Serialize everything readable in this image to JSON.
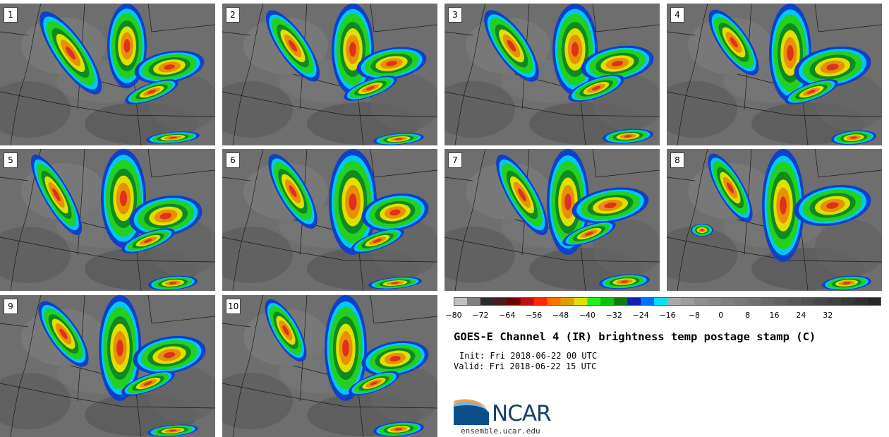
{
  "panels": [
    {
      "label": "1",
      "cells": [
        {
          "cx": 100,
          "cy": 70,
          "rx": 22,
          "ry": 70,
          "rot": -35
        },
        {
          "cx": 180,
          "cy": 60,
          "rx": 28,
          "ry": 60,
          "rot": 0
        },
        {
          "cx": 240,
          "cy": 90,
          "rx": 50,
          "ry": 22,
          "rot": -10
        },
        {
          "cx": 215,
          "cy": 125,
          "rx": 40,
          "ry": 12,
          "rot": -20
        },
        {
          "cx": 245,
          "cy": 190,
          "rx": 38,
          "ry": 8,
          "rot": -5
        }
      ]
    },
    {
      "label": "2",
      "cells": [
        {
          "cx": 100,
          "cy": 60,
          "rx": 20,
          "ry": 60,
          "rot": -35
        },
        {
          "cx": 185,
          "cy": 65,
          "rx": 30,
          "ry": 65,
          "rot": 0
        },
        {
          "cx": 240,
          "cy": 85,
          "rx": 50,
          "ry": 22,
          "rot": -10
        },
        {
          "cx": 210,
          "cy": 120,
          "rx": 40,
          "ry": 12,
          "rot": -20
        },
        {
          "cx": 250,
          "cy": 192,
          "rx": 36,
          "ry": 8,
          "rot": -5
        }
      ]
    },
    {
      "label": "3",
      "cells": [
        {
          "cx": 95,
          "cy": 60,
          "rx": 22,
          "ry": 60,
          "rot": -35
        },
        {
          "cx": 185,
          "cy": 65,
          "rx": 32,
          "ry": 65,
          "rot": 0
        },
        {
          "cx": 245,
          "cy": 85,
          "rx": 52,
          "ry": 24,
          "rot": -10
        },
        {
          "cx": 215,
          "cy": 120,
          "rx": 42,
          "ry": 14,
          "rot": -20
        },
        {
          "cx": 260,
          "cy": 188,
          "rx": 36,
          "ry": 10,
          "rot": -5
        }
      ]
    },
    {
      "label": "4",
      "cells": [
        {
          "cx": 95,
          "cy": 55,
          "rx": 20,
          "ry": 55,
          "rot": -35
        },
        {
          "cx": 175,
          "cy": 70,
          "rx": 30,
          "ry": 70,
          "rot": 0
        },
        {
          "cx": 235,
          "cy": 90,
          "rx": 55,
          "ry": 28,
          "rot": -10
        },
        {
          "cx": 205,
          "cy": 125,
          "rx": 40,
          "ry": 12,
          "rot": -20
        },
        {
          "cx": 265,
          "cy": 190,
          "rx": 32,
          "ry": 10,
          "rot": -5
        }
      ]
    },
    {
      "label": "5",
      "cells": [
        {
          "cx": 80,
          "cy": 65,
          "rx": 18,
          "ry": 65,
          "rot": -30
        },
        {
          "cx": 175,
          "cy": 70,
          "rx": 32,
          "ry": 70,
          "rot": 0
        },
        {
          "cx": 235,
          "cy": 95,
          "rx": 52,
          "ry": 28,
          "rot": -10
        },
        {
          "cx": 210,
          "cy": 130,
          "rx": 40,
          "ry": 12,
          "rot": -20
        },
        {
          "cx": 245,
          "cy": 190,
          "rx": 35,
          "ry": 10,
          "rot": -5
        }
      ]
    },
    {
      "label": "6",
      "cells": [
        {
          "cx": 100,
          "cy": 60,
          "rx": 20,
          "ry": 60,
          "rot": -30
        },
        {
          "cx": 185,
          "cy": 75,
          "rx": 34,
          "ry": 75,
          "rot": 0
        },
        {
          "cx": 245,
          "cy": 90,
          "rx": 48,
          "ry": 26,
          "rot": -10
        },
        {
          "cx": 220,
          "cy": 130,
          "rx": 40,
          "ry": 12,
          "rot": -20
        },
        {
          "cx": 245,
          "cy": 190,
          "rx": 38,
          "ry": 8,
          "rot": -5
        }
      ]
    },
    {
      "label": "7",
      "cells": [
        {
          "cx": 110,
          "cy": 65,
          "rx": 20,
          "ry": 65,
          "rot": -30
        },
        {
          "cx": 175,
          "cy": 75,
          "rx": 30,
          "ry": 75,
          "rot": 0
        },
        {
          "cx": 235,
          "cy": 80,
          "rx": 55,
          "ry": 24,
          "rot": -10
        },
        {
          "cx": 205,
          "cy": 120,
          "rx": 40,
          "ry": 12,
          "rot": -20
        },
        {
          "cx": 255,
          "cy": 188,
          "rx": 36,
          "ry": 10,
          "rot": -5
        }
      ]
    },
    {
      "label": "8",
      "cells": [
        {
          "cx": 90,
          "cy": 55,
          "rx": 18,
          "ry": 55,
          "rot": -30
        },
        {
          "cx": 165,
          "cy": 80,
          "rx": 30,
          "ry": 80,
          "rot": 0
        },
        {
          "cx": 235,
          "cy": 80,
          "rx": 55,
          "ry": 28,
          "rot": -10
        },
        {
          "cx": 50,
          "cy": 115,
          "rx": 16,
          "ry": 9,
          "rot": 0
        },
        {
          "cx": 255,
          "cy": 190,
          "rx": 35,
          "ry": 10,
          "rot": -5
        }
      ]
    },
    {
      "label": "9",
      "cells": [
        {
          "cx": 90,
          "cy": 55,
          "rx": 20,
          "ry": 55,
          "rot": -35
        },
        {
          "cx": 170,
          "cy": 75,
          "rx": 30,
          "ry": 75,
          "rot": 0
        },
        {
          "cx": 240,
          "cy": 85,
          "rx": 52,
          "ry": 26,
          "rot": -10
        },
        {
          "cx": 210,
          "cy": 125,
          "rx": 40,
          "ry": 12,
          "rot": -20
        },
        {
          "cx": 245,
          "cy": 192,
          "rx": 36,
          "ry": 8,
          "rot": -5
        }
      ]
    },
    {
      "label": "10",
      "cells": [
        {
          "cx": 90,
          "cy": 50,
          "rx": 18,
          "ry": 50,
          "rot": -30
        },
        {
          "cx": 175,
          "cy": 75,
          "rx": 30,
          "ry": 75,
          "rot": 0
        },
        {
          "cx": 245,
          "cy": 90,
          "rx": 48,
          "ry": 24,
          "rot": -10
        },
        {
          "cx": 215,
          "cy": 125,
          "rx": 38,
          "ry": 12,
          "rot": -20
        },
        {
          "cx": 250,
          "cy": 190,
          "rx": 36,
          "ry": 10,
          "rot": -5
        }
      ]
    }
  ],
  "colorbar": {
    "colors": [
      "#c0c0c0",
      "#7f7f7f",
      "#2b2b2b",
      "#4a1d1d",
      "#700000",
      "#c01010",
      "#ff2a00",
      "#ff7000",
      "#d8a000",
      "#e0e000",
      "#20f020",
      "#10c010",
      "#107810",
      "#1020b0",
      "#0070ff",
      "#00e0ff",
      "#a8a8a8",
      "#9c9c9c",
      "#909090",
      "#888888",
      "#808080",
      "#787878",
      "#707070",
      "#686868",
      "#606060",
      "#585858",
      "#505050",
      "#484848",
      "#404040",
      "#383838",
      "#303030",
      "#282828"
    ],
    "ticks": [
      "−80",
      "−72",
      "−64",
      "−56",
      "−48",
      "−40",
      "−32",
      "−24",
      "−16",
      "−8",
      "0",
      "8",
      "16",
      "24",
      "32"
    ]
  },
  "title": "GOES-E Channel 4 (IR) brightness temp postage stamp (C)",
  "init_line": "Init: Fri 2018-06-22 00 UTC",
  "valid_line": "Valid: Fri 2018-06-22 15 UTC",
  "logo": {
    "text": "NCAR",
    "colors": {
      "swoosh_dark": "#0b4f8a",
      "swoosh_light": "#7fb0d8",
      "swoosh_orange": "#f0a040"
    }
  },
  "site": "ensemble.ucar.edu"
}
